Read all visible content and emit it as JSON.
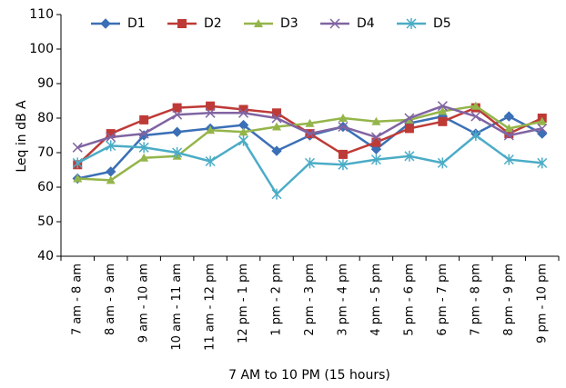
{
  "chart_data": {
    "type": "line",
    "y_label": "Leq in dB A",
    "x_label": "7 AM to 10 PM (15 hours)",
    "categories": [
      "7 am - 8 am",
      "8 am - 9 am",
      "9 am - 10 am",
      "10 am - 11 am",
      "11 am - 12 pm",
      "12 pm - 1 pm",
      "1 pm - 2 pm",
      "2 pm - 3 pm",
      "3 pm - 4 pm",
      "4 pm - 5 pm",
      "5 pm - 6 pm",
      "6 pm - 7 pm",
      "7 pm - 8 pm",
      "8 pm - 9 pm",
      "9 pm - 10 pm"
    ],
    "series": [
      {
        "name": "D1",
        "color": "#3b6fb6",
        "marker": "diamond",
        "values": [
          62.5,
          64.5,
          75,
          76,
          77,
          78,
          70.5,
          75,
          77.5,
          71,
          78.5,
          80.5,
          75.5,
          80.5,
          75.5
        ]
      },
      {
        "name": "D2",
        "color": "#be3a36",
        "marker": "square",
        "values": [
          66.5,
          75.5,
          79.5,
          83,
          83.5,
          82.5,
          81.5,
          75.5,
          69.5,
          73,
          77,
          79,
          83,
          75.5,
          80
        ]
      },
      {
        "name": "D3",
        "color": "#94b54a",
        "marker": "triangle",
        "values": [
          62.5,
          62,
          68.5,
          69,
          76.5,
          76,
          77.5,
          78.5,
          80,
          79,
          79.5,
          82,
          83.5,
          77,
          79
        ]
      },
      {
        "name": "D4",
        "color": "#8064a2",
        "marker": "x",
        "values": [
          71.5,
          74.5,
          75.5,
          81,
          81.5,
          81.5,
          80,
          75.5,
          77.5,
          74.5,
          80,
          83.5,
          80.5,
          75,
          77
        ]
      },
      {
        "name": "D5",
        "color": "#4bacc6",
        "marker": "star",
        "values": [
          67,
          72,
          71.5,
          70,
          67.5,
          73.5,
          58,
          67,
          66.5,
          68,
          69,
          67,
          75,
          68,
          67
        ]
      }
    ],
    "ylim": [
      40,
      110
    ],
    "yticks": [
      40,
      50,
      60,
      70,
      80,
      90,
      100,
      110
    ],
    "grid": false
  }
}
